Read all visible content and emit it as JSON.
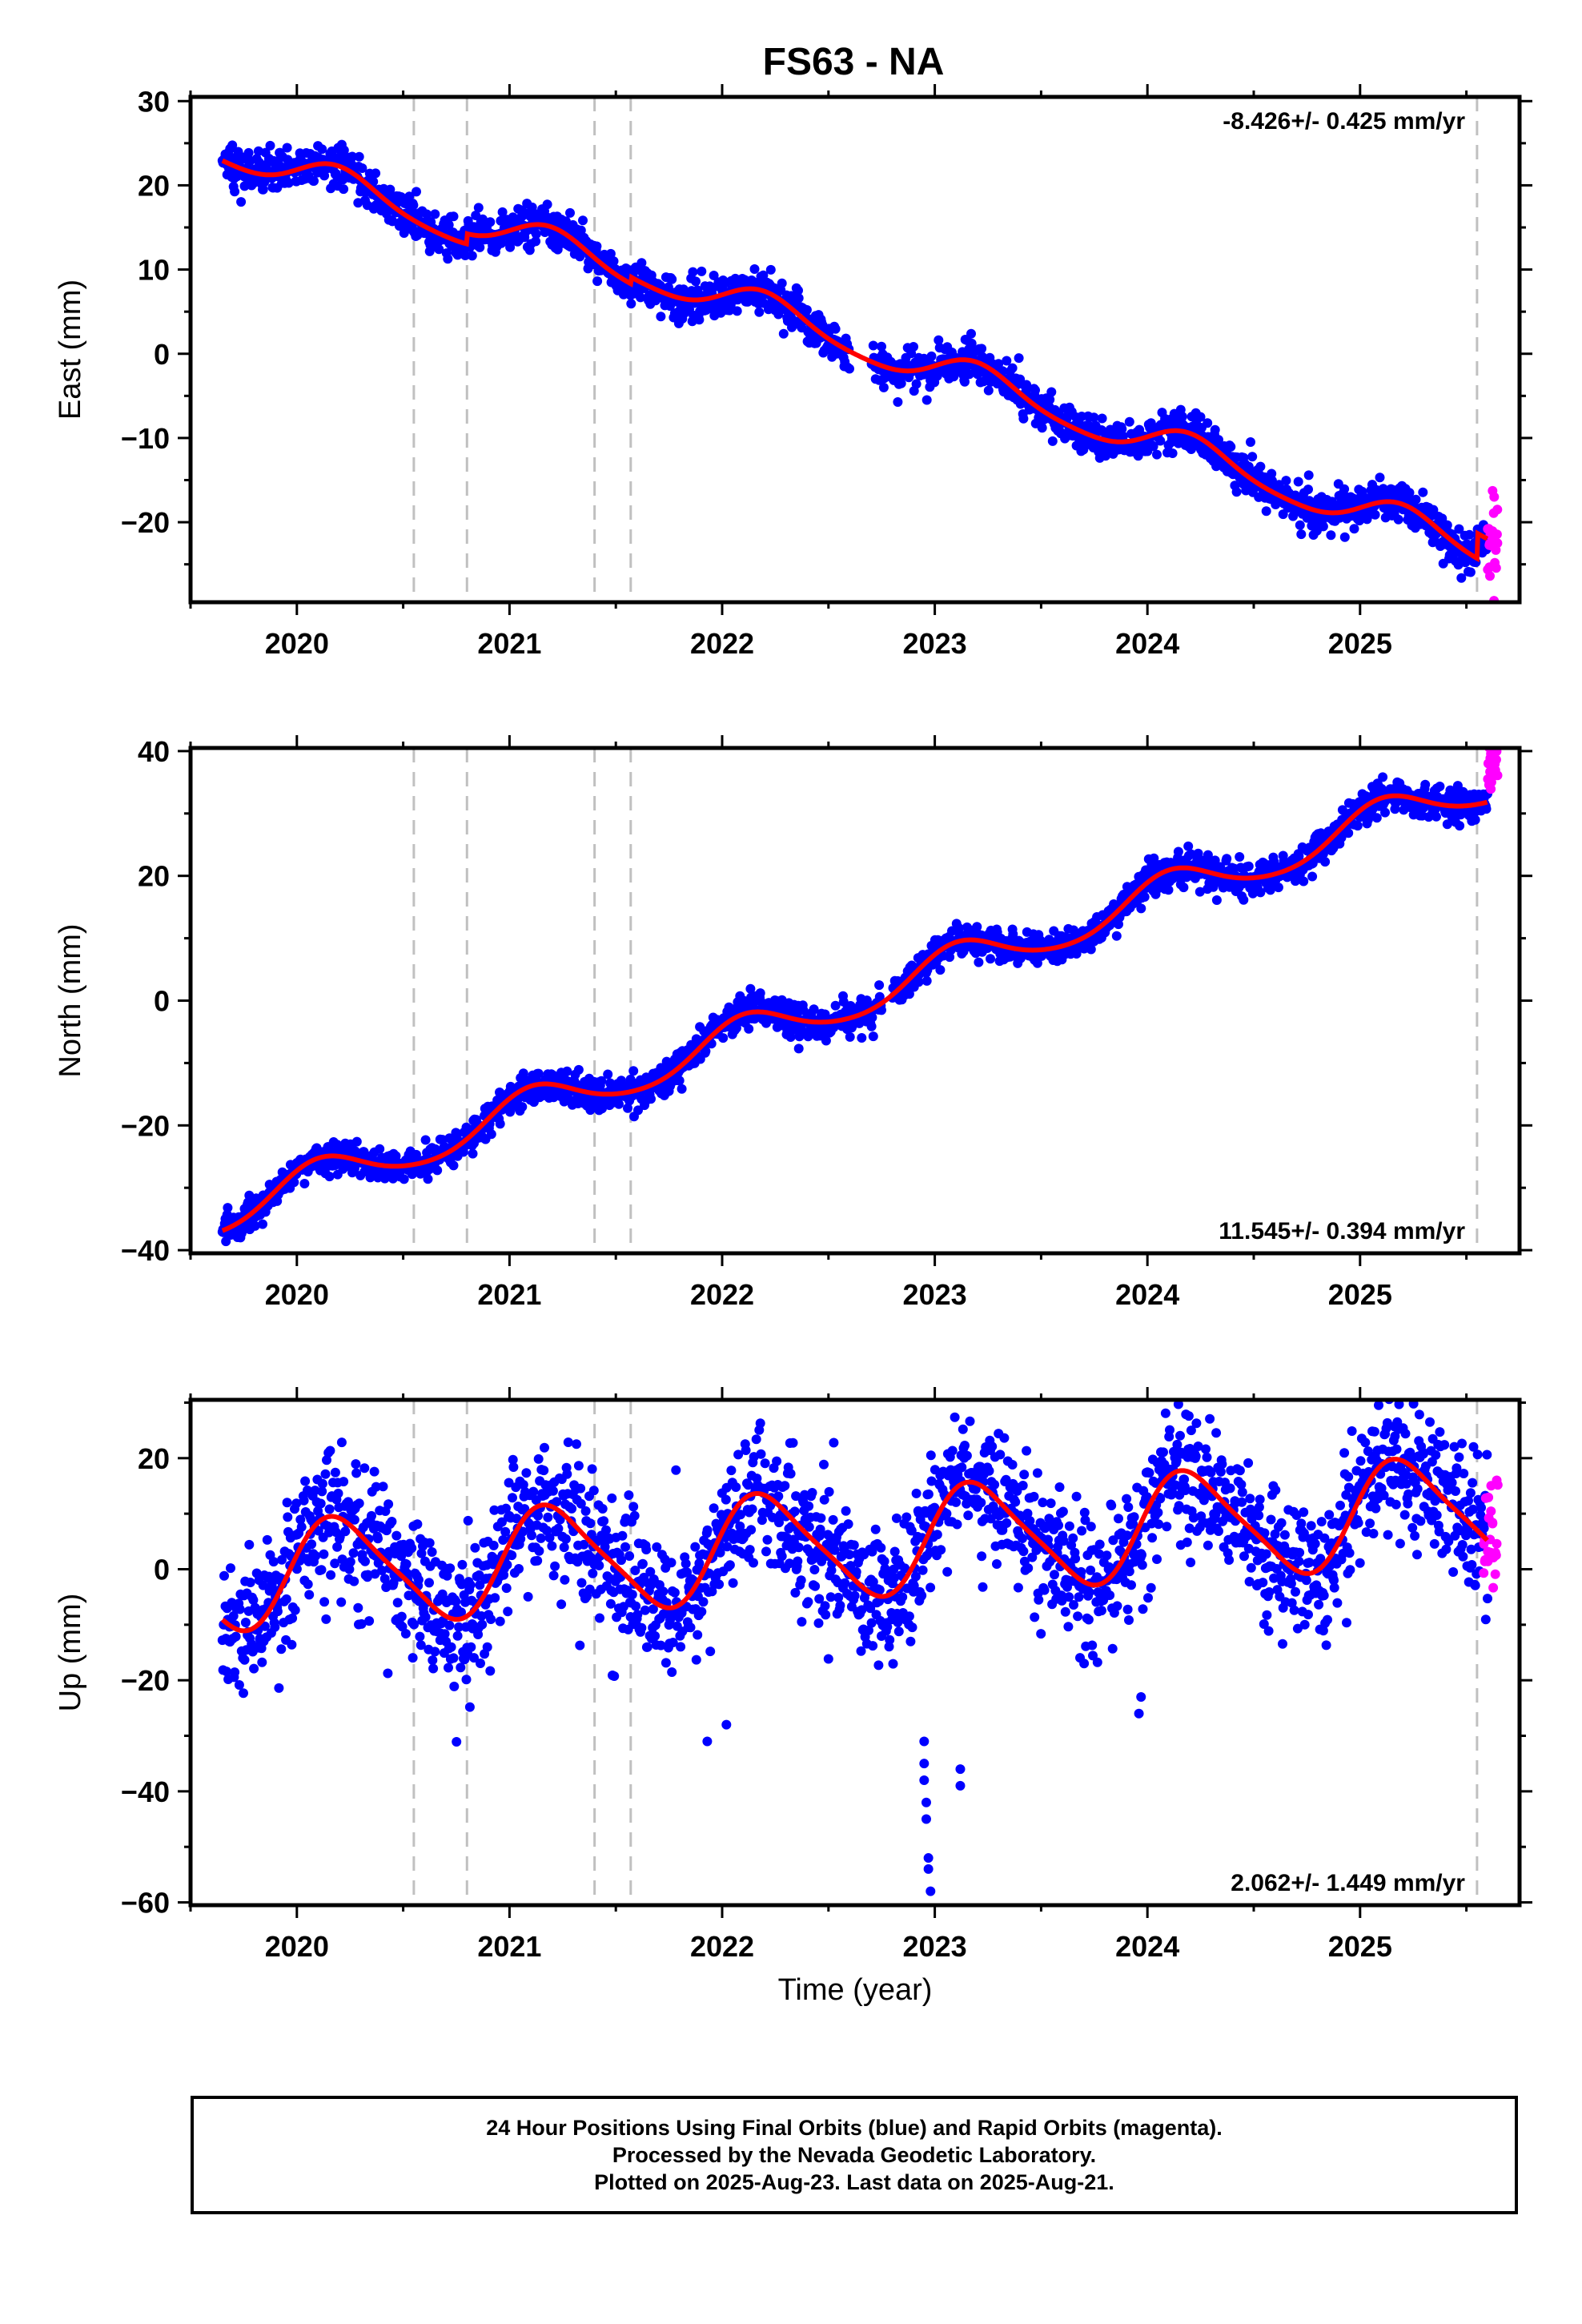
{
  "chart_data": [
    {
      "type": "scatter",
      "title": "FS63 - NA",
      "ylabel": "East (mm)",
      "xlabel": "",
      "xlim": [
        2019.5,
        2025.75
      ],
      "ylim": [
        -29.5,
        30.5
      ],
      "xticks": [
        2020,
        2021,
        2022,
        2023,
        2024,
        2025
      ],
      "xtick_labels": [
        "2020",
        "2021",
        "2022",
        "2023",
        "2024",
        "2025"
      ],
      "yticks": [
        30,
        20,
        10,
        0,
        -10,
        -20
      ],
      "ytick_labels": [
        "30",
        "20",
        "10",
        "0",
        "−10",
        "−20"
      ],
      "rate_label": "-8.426+/- 0.425 mm/yr",
      "rate_position": "top-right",
      "breaks": [
        2020.55,
        2020.8,
        2021.4,
        2021.57,
        2025.55
      ],
      "colors": {
        "final": "#0000ff",
        "rapid": "#ff00ff",
        "model": "#ff0000",
        "break": "#c0c0c0"
      },
      "model": {
        "start": 2019.65,
        "end": 2025.6,
        "trend_start": 24.5,
        "trend": -8.426,
        "sin": 2.0,
        "cos": 0.5,
        "sin2": 0.3,
        "cos2": -0.2,
        "offsets": [
          [
            2020.8,
            1.2
          ],
          [
            2021.57,
            0.8
          ],
          [
            2025.55,
            3.0
          ]
        ]
      },
      "final_noise": 1.2,
      "rapid_range": [
        2025.6,
        2025.65
      ],
      "rapid_mean": -22.5,
      "rapid_noise": 3.0,
      "gaps": [
        [
          2022.6,
          2022.7
        ]
      ]
    },
    {
      "type": "scatter",
      "title": "",
      "ylabel": "North (mm)",
      "xlabel": "",
      "xlim": [
        2019.5,
        2025.75
      ],
      "ylim": [
        -40.5,
        40.5
      ],
      "xticks": [
        2020,
        2021,
        2022,
        2023,
        2024,
        2025
      ],
      "xtick_labels": [
        "2020",
        "2021",
        "2022",
        "2023",
        "2024",
        "2025"
      ],
      "yticks": [
        40,
        20,
        0,
        -20,
        -40
      ],
      "ytick_labels": [
        "40",
        "20",
        "0",
        "−20",
        "−40"
      ],
      "rate_label": "11.545+/- 0.394 mm/yr",
      "rate_position": "bottom-right",
      "breaks": [
        2020.55,
        2020.8,
        2021.4,
        2021.57,
        2025.55
      ],
      "colors": {
        "final": "#0000ff",
        "rapid": "#ff00ff",
        "model": "#ff0000",
        "break": "#c0c0c0"
      },
      "model": {
        "start": 2019.65,
        "end": 2025.6,
        "trend_start": -34.0,
        "trend": 11.545,
        "sin": 2.0,
        "cos": 2.5,
        "sin2": 0.3,
        "cos2": 0.2,
        "offsets": []
      },
      "final_noise": 1.3,
      "rapid_range": [
        2025.6,
        2025.65
      ],
      "rapid_mean": 37.5,
      "rapid_noise": 1.6,
      "gaps": [
        [
          2022.75,
          2022.8
        ]
      ]
    },
    {
      "type": "scatter",
      "title": "",
      "ylabel": "Up (mm)",
      "xlabel": "Time (year)",
      "xlim": [
        2019.5,
        2025.75
      ],
      "ylim": [
        -60.5,
        30.5
      ],
      "xticks": [
        2020,
        2021,
        2022,
        2023,
        2024,
        2025
      ],
      "xtick_labels": [
        "2020",
        "2021",
        "2022",
        "2023",
        "2024",
        "2025"
      ],
      "yticks": [
        20,
        0,
        -20,
        -40,
        -60
      ],
      "ytick_labels": [
        "20",
        "0",
        "−20",
        "−40",
        "−60"
      ],
      "rate_label": "2.062+/- 1.449 mm/yr",
      "rate_position": "bottom-right",
      "breaks": [
        2020.55,
        2020.8,
        2021.4,
        2021.57,
        2025.55
      ],
      "colors": {
        "final": "#0000ff",
        "rapid": "#ff00ff",
        "model": "#ff0000",
        "break": "#c0c0c0"
      },
      "model": {
        "start": 2019.65,
        "end": 2025.6,
        "trend_start": -1.5,
        "trend": 2.062,
        "sin": 9.0,
        "cos": 2.5,
        "sin2": 1.5,
        "cos2": 0.8,
        "offsets": []
      },
      "final_noise": 6.0,
      "rapid_range": [
        2025.58,
        2025.65
      ],
      "rapid_mean": 5.0,
      "rapid_noise": 5.5,
      "gaps": [],
      "outliers": [
        {
          "x": 2022.95,
          "y": -31
        },
        {
          "x": 2022.95,
          "y": -35
        },
        {
          "x": 2022.95,
          "y": -38
        },
        {
          "x": 2022.96,
          "y": -42
        },
        {
          "x": 2022.96,
          "y": -45
        },
        {
          "x": 2022.97,
          "y": -52
        },
        {
          "x": 2022.97,
          "y": -54
        },
        {
          "x": 2022.98,
          "y": -58
        },
        {
          "x": 2023.12,
          "y": -36
        },
        {
          "x": 2023.12,
          "y": -39
        },
        {
          "x": 2021.93,
          "y": -31
        },
        {
          "x": 2022.02,
          "y": -28
        },
        {
          "x": 2023.96,
          "y": -26
        },
        {
          "x": 2023.97,
          "y": -23
        }
      ]
    }
  ],
  "footer": {
    "lines": [
      "24 Hour Positions Using Final Orbits (blue) and Rapid Orbits (magenta).",
      "Processed by the Nevada Geodetic Laboratory.",
      "Plotted on 2025-Aug-23. Last data on 2025-Aug-21."
    ]
  }
}
